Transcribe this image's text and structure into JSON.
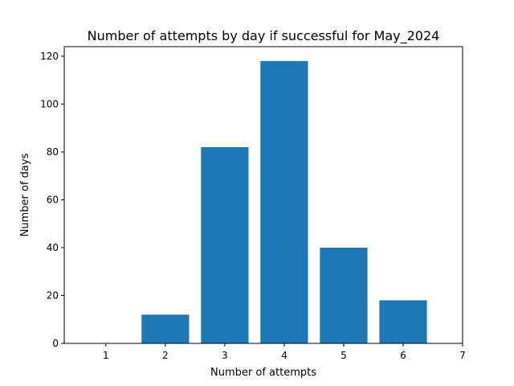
{
  "chart_data": {
    "type": "bar",
    "title": "Number of attempts by day if successful for May_2024",
    "xlabel": "Number of attempts",
    "ylabel": "Number of days",
    "x": [
      1,
      2,
      3,
      4,
      5,
      6
    ],
    "values": [
      0,
      12,
      82,
      118,
      40,
      18
    ],
    "bar_color": "#1f77b4",
    "xlim": [
      0.3,
      7
    ],
    "ylim": [
      0,
      124
    ],
    "xticks": [
      1,
      2,
      3,
      4,
      5,
      6,
      7
    ],
    "yticks": [
      0,
      20,
      40,
      60,
      80,
      100,
      120
    ],
    "grid": false,
    "legend": false
  }
}
